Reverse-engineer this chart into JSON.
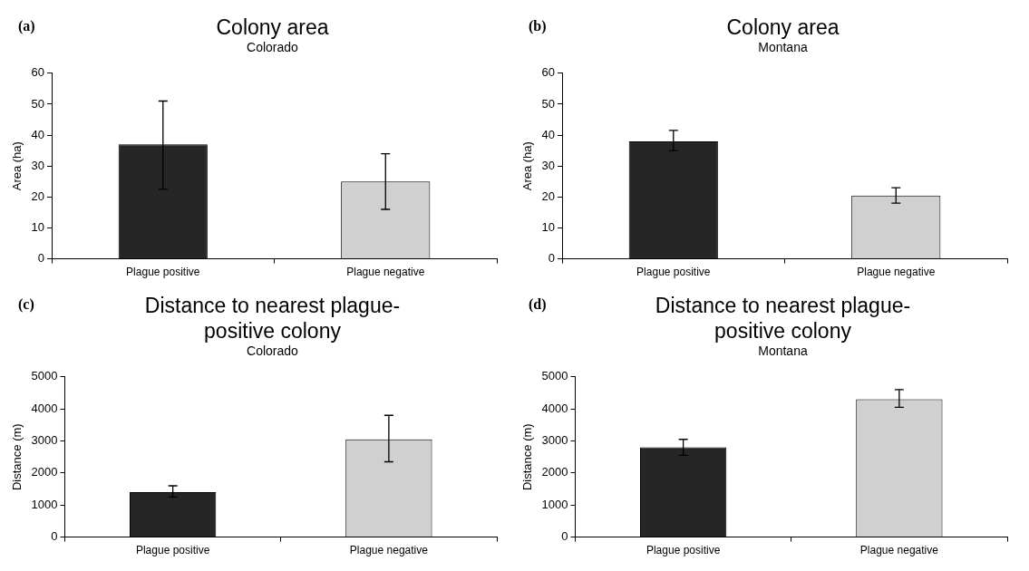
{
  "chart_data": [
    {
      "type": "bar",
      "title": "Colony area",
      "subtitle": "Colorado",
      "ylabel": "Area (ha)",
      "annotations": [
        "(a)"
      ],
      "categories": [
        "Plague positive",
        "Plague negative"
      ],
      "values": [
        37,
        25
      ],
      "colors": [
        "#262626",
        "#d0d0d0"
      ],
      "errors": [
        [
          22.5,
          51
        ],
        [
          16,
          34
        ]
      ],
      "ylim": [
        0,
        60
      ],
      "yticks": [
        0,
        10,
        20,
        30,
        40,
        50,
        60
      ],
      "grid": false
    },
    {
      "type": "bar",
      "title": "Colony area",
      "subtitle": "Montana",
      "ylabel": "Area (ha)",
      "annotations": [
        "(b)"
      ],
      "categories": [
        "Plague positive",
        "Plague negative"
      ],
      "values": [
        38,
        20.5
      ],
      "colors": [
        "#262626",
        "#d0d0d0"
      ],
      "errors": [
        [
          35,
          41.5
        ],
        [
          18,
          23
        ]
      ],
      "ylim": [
        0,
        60
      ],
      "yticks": [
        0,
        10,
        20,
        30,
        40,
        50,
        60
      ],
      "grid": false
    },
    {
      "type": "bar",
      "title": "Distance to nearest plague-positive colony",
      "subtitle": "Colorado",
      "ylabel": "Distance (m)",
      "annotations": [
        "(c)"
      ],
      "categories": [
        "Plague positive",
        "Plague negative"
      ],
      "values": [
        1400,
        3050
      ],
      "colors": [
        "#262626",
        "#d0d0d0"
      ],
      "errors": [
        [
          1250,
          1600
        ],
        [
          2350,
          3800
        ]
      ],
      "ylim": [
        0,
        5000
      ],
      "yticks": [
        0,
        1000,
        2000,
        3000,
        4000,
        5000
      ],
      "grid": false
    },
    {
      "type": "bar",
      "title": "Distance to nearest plague-positive colony",
      "subtitle": "Montana",
      "ylabel": "Distance (m)",
      "annotations": [
        "(d)"
      ],
      "categories": [
        "Plague positive",
        "Plague negative"
      ],
      "values": [
        2800,
        4300
      ],
      "colors": [
        "#262626",
        "#d0d0d0"
      ],
      "errors": [
        [
          2550,
          3050
        ],
        [
          4050,
          4600
        ]
      ],
      "ylim": [
        0,
        5000
      ],
      "yticks": [
        0,
        1000,
        2000,
        3000,
        4000,
        5000
      ],
      "grid": false
    }
  ]
}
